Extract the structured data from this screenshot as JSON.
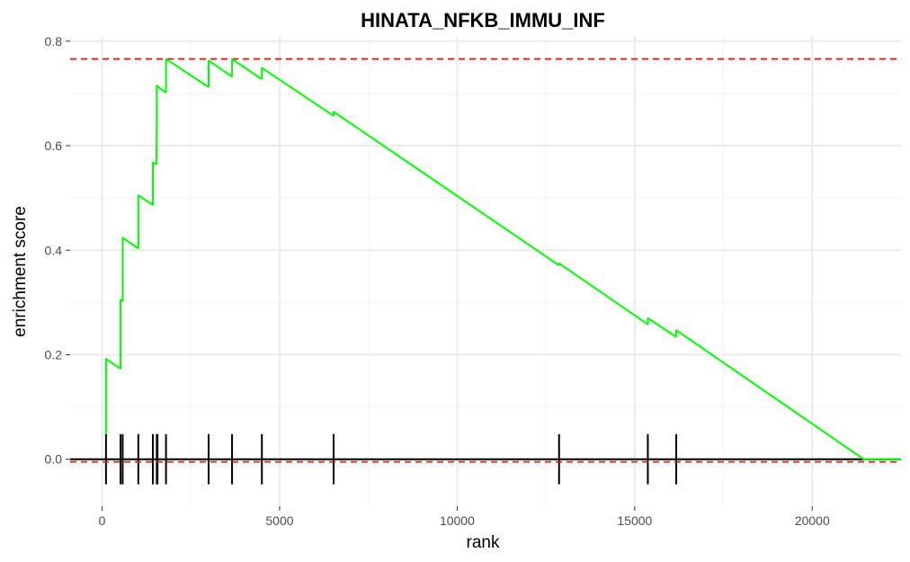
{
  "chart_data": {
    "type": "line",
    "title": "HINATA_NFKB_IMMU_INF",
    "xlabel": "rank",
    "ylabel": "enrichment score",
    "xlim": [
      -900,
      22500
    ],
    "ylim": [
      -0.09,
      0.81
    ],
    "x_ticks": [
      0,
      5000,
      10000,
      15000,
      20000
    ],
    "x_tick_labels": [
      "0",
      "5000",
      "10000",
      "15000",
      "20000"
    ],
    "y_ticks": [
      0.0,
      0.2,
      0.4,
      0.6,
      0.8
    ],
    "y_tick_labels": [
      "0.0",
      "0.2",
      "0.4",
      "0.6",
      "0.8"
    ],
    "grid": true,
    "legend": "none",
    "series": [
      {
        "color": "#00ff00",
        "x": [
          110,
          110,
          500,
          520,
          520,
          580,
          580,
          1000,
          1020,
          1020,
          1420,
          1430,
          1430,
          1520,
          1530,
          1540,
          1540,
          1560,
          1560,
          1760,
          1800,
          1800,
          2980,
          3000,
          3000,
          3640,
          3660,
          3660,
          4480,
          4500,
          4500,
          6500,
          6520,
          6520,
          12850,
          12870,
          12870,
          15350,
          15370,
          15370,
          16150,
          16170,
          16170,
          21450,
          22500
        ],
        "y": [
          0.048,
          0.192,
          0.174,
          0.174,
          0.305,
          0.303,
          0.424,
          0.404,
          0.404,
          0.505,
          0.487,
          0.487,
          0.568,
          0.565,
          0.565,
          0.64,
          0.715,
          0.714,
          0.714,
          0.703,
          0.703,
          0.766,
          0.713,
          0.713,
          0.763,
          0.733,
          0.733,
          0.766,
          0.728,
          0.728,
          0.749,
          0.658,
          0.658,
          0.665,
          0.372,
          0.372,
          0.375,
          0.259,
          0.259,
          0.27,
          0.235,
          0.235,
          0.247,
          0.0,
          0.0
        ]
      }
    ],
    "hit_ranks": [
      110,
      520,
      580,
      1020,
      1430,
      1540,
      1560,
      1800,
      3000,
      3660,
      4500,
      6520,
      12870,
      15370,
      16170
    ],
    "hit_line": {
      "color": "#000000",
      "ymin": -0.048,
      "ymax": 0.048
    },
    "zero_line": {
      "y": 0.0,
      "color": "#000000"
    },
    "reference_lines": [
      {
        "y": 0.766,
        "color": "#e31a1c",
        "style": "dashed"
      },
      {
        "y": -0.005,
        "color": "#e31a1c",
        "style": "dashed"
      }
    ]
  }
}
